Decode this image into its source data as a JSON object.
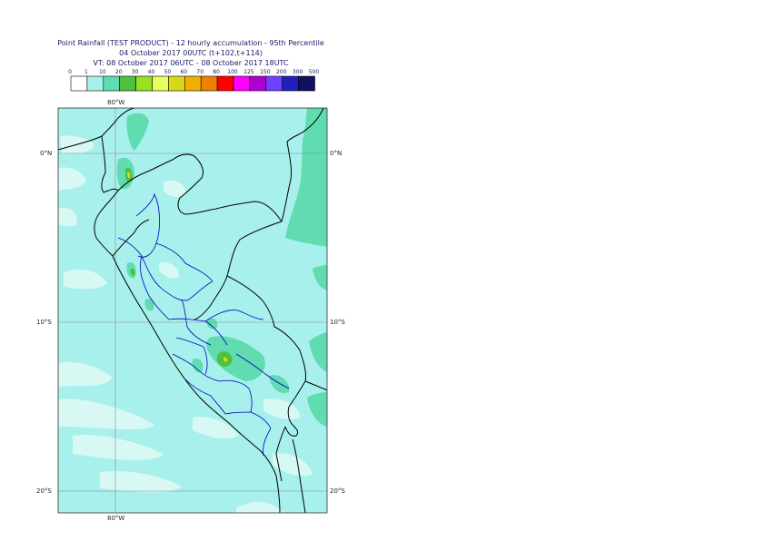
{
  "title": {
    "line1": "Point Rainfall (TEST PRODUCT) - 12 hourly accumulation - 95th Percentile",
    "line2": "04 October 2017 00UTC (t+102,t+114)",
    "line3": "VT: 08 October 2017 06UTC - 08 October 2017 18UTC"
  },
  "legend": {
    "ticks": [
      "0",
      "1",
      "10",
      "20",
      "30",
      "40",
      "50",
      "60",
      "70",
      "80",
      "100",
      "125",
      "150",
      "200",
      "300",
      "500"
    ],
    "colors": [
      "#ffffff",
      "#a8f0ec",
      "#60dcb0",
      "#50c040",
      "#98e020",
      "#e8ff60",
      "#d8d818",
      "#f0b000",
      "#f08000",
      "#ff0000",
      "#ff00ff",
      "#b000d0",
      "#7040ff",
      "#2020c0",
      "#101060"
    ]
  },
  "axes": {
    "lon_top": "80°W",
    "lon_bottom": "80°W",
    "lat_left": [
      "0°N",
      "10°S",
      "20°S"
    ],
    "lat_right": [
      "0°N",
      "10°S",
      "20°S"
    ]
  },
  "colors": {
    "sea_background": "#a8f0ec",
    "light_rain": "#d8f8f4",
    "moderate_rain": "#60dcb0",
    "heavy_rain": "#50c040",
    "country_border": "#000000",
    "region_border": "#0000c0",
    "graticule": "#8a8a8a"
  }
}
